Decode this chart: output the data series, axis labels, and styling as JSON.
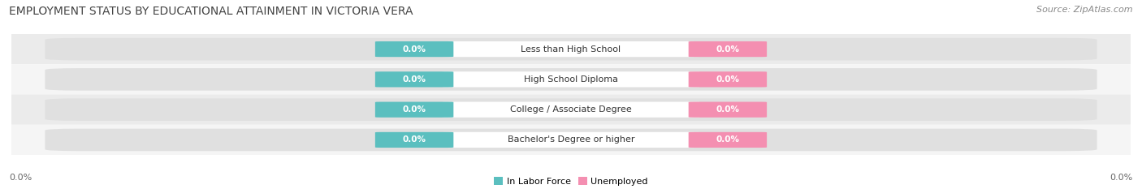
{
  "title": "EMPLOYMENT STATUS BY EDUCATIONAL ATTAINMENT IN VICTORIA VERA",
  "source": "Source: ZipAtlas.com",
  "categories": [
    "Less than High School",
    "High School Diploma",
    "College / Associate Degree",
    "Bachelor's Degree or higher"
  ],
  "labor_force_values": [
    0.0,
    0.0,
    0.0,
    0.0
  ],
  "unemployed_values": [
    0.0,
    0.0,
    0.0,
    0.0
  ],
  "labor_force_color": "#5bbfbf",
  "unemployed_color": "#f48fb1",
  "bar_bg_color_odd": "#ebebeb",
  "bar_bg_color_even": "#f5f5f5",
  "label_text_color": "white",
  "category_text_color": "#333333",
  "legend_lf_label": "In Labor Force",
  "legend_un_label": "Unemployed",
  "xlim_left_label": "0.0%",
  "xlim_right_label": "0.0%",
  "title_fontsize": 10,
  "source_fontsize": 8,
  "category_fontsize": 8,
  "value_fontsize": 7.5,
  "legend_fontsize": 8,
  "axis_label_fontsize": 8
}
